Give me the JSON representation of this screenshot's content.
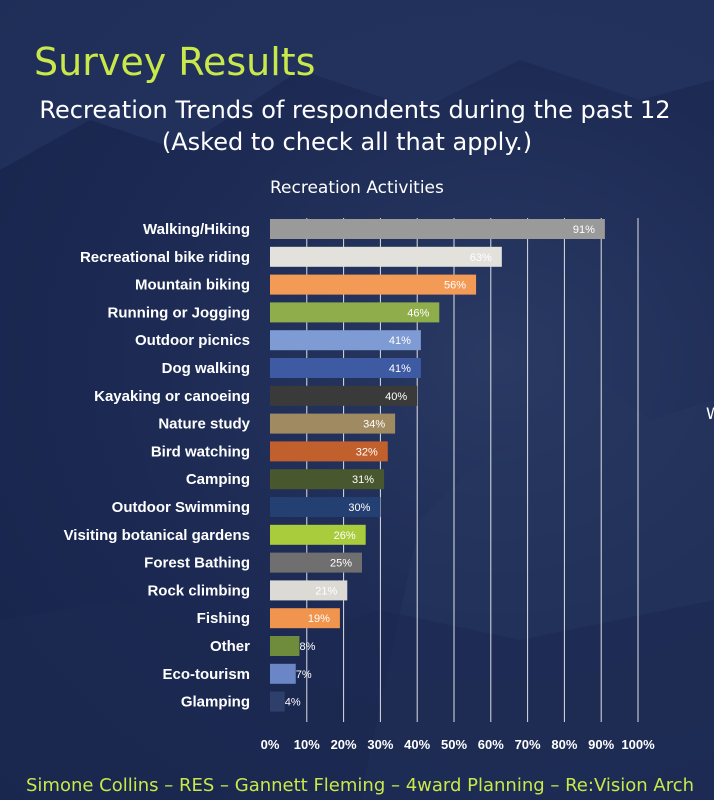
{
  "slide": {
    "title": "Survey Results",
    "subtitle_line1": "Recreation Trends of respondents during the past 12",
    "subtitle_line2": "(Asked to check all that apply.)",
    "footer": "Simone Collins – RES – Gannett Fleming – 4ward Planning – Re:Vision Arch",
    "edge_text": "W"
  },
  "chart_data": {
    "type": "bar",
    "orientation": "horizontal",
    "title": "Recreation Activities",
    "xlabel": "",
    "ylabel": "",
    "xlim": [
      0,
      100
    ],
    "grid": true,
    "categories": [
      "Walking/Hiking",
      "Recreational bike riding",
      "Mountain biking",
      "Running or Jogging",
      "Outdoor picnics",
      "Dog walking",
      "Kayaking or canoeing",
      "Nature study",
      "Bird watching",
      "Camping",
      "Outdoor Swimming",
      "Visiting botanical gardens",
      "Forest Bathing",
      "Rock climbing",
      "Fishing",
      "Other",
      "Eco-tourism",
      "Glamping"
    ],
    "values": [
      91,
      63,
      56,
      46,
      41,
      41,
      40,
      34,
      32,
      31,
      30,
      26,
      25,
      21,
      19,
      8,
      7,
      4
    ],
    "value_labels": [
      "91%",
      "63%",
      "56%",
      "46%",
      "41%",
      "41%",
      "40%",
      "34%",
      "32%",
      "31%",
      "30%",
      "26%",
      "25%",
      "21%",
      "19%",
      "8%",
      "7%",
      "4%"
    ],
    "colors": [
      "#9a9a9a",
      "#e3e1dc",
      "#f39a57",
      "#8fae4b",
      "#7f9bd3",
      "#3e5aa3",
      "#3a3a3a",
      "#a08a62",
      "#c1602c",
      "#48572e",
      "#243f72",
      "#a8cc3c",
      "#6f6f6f",
      "#dcdad5",
      "#f1944e",
      "#6f8c3c",
      "#6b86c6",
      "#2e3f6b"
    ],
    "x_ticks": [
      0,
      10,
      20,
      30,
      40,
      50,
      60,
      70,
      80,
      90,
      100
    ],
    "x_tick_labels": [
      "0%",
      "10%",
      "20%",
      "30%",
      "40%",
      "50%",
      "60%",
      "70%",
      "80%",
      "90%",
      "100%"
    ]
  }
}
